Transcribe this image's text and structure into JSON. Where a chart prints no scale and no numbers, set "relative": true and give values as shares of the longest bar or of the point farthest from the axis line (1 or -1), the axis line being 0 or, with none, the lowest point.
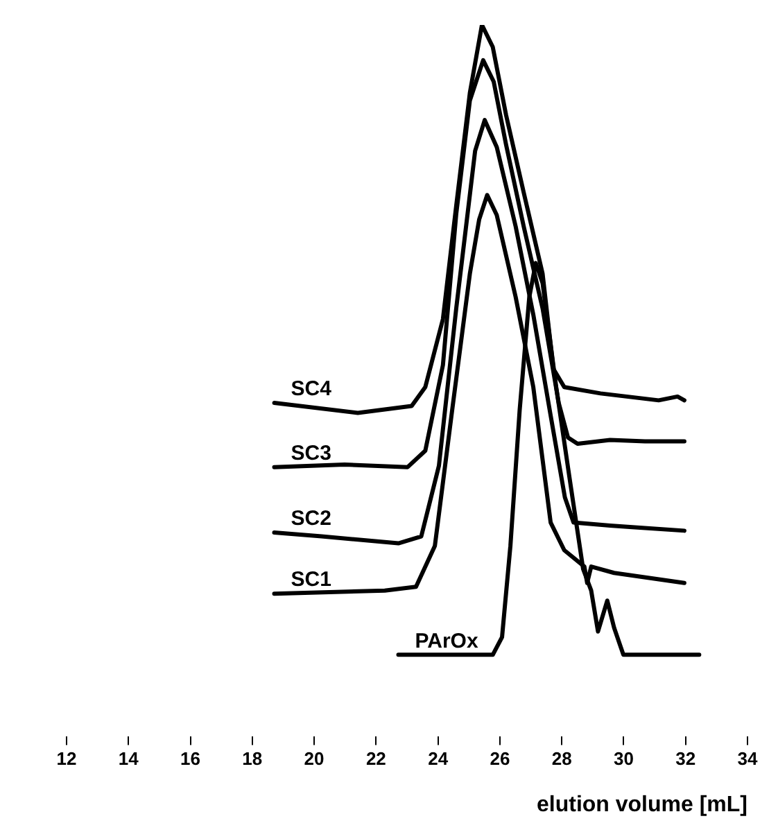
{
  "chart_data": {
    "type": "line",
    "relative": true,
    "xlabel": "elution volume [mL]",
    "xlim": [
      12,
      34
    ],
    "xticks": [
      12,
      14,
      16,
      18,
      20,
      22,
      24,
      26,
      28,
      30,
      32,
      34
    ],
    "series": [
      {
        "name": "SC4",
        "color": "#000000",
        "x": [
          18.71,
          21.41,
          23.15,
          23.59,
          24.16,
          24.59,
          25.03,
          25.42,
          25.77,
          26.2,
          26.77,
          27.38,
          27.73,
          28.08,
          29.25,
          31.13,
          31.74,
          31.96
        ],
        "values": [
          0.4,
          0.384,
          0.395,
          0.425,
          0.533,
          0.713,
          0.892,
          1,
          0.965,
          0.857,
          0.734,
          0.605,
          0.454,
          0.425,
          0.415,
          0.404,
          0.41,
          0.404
        ]
      },
      {
        "name": "SC3",
        "color": "#000000",
        "x": [
          18.71,
          20.98,
          23.02,
          23.59,
          24.16,
          24.59,
          25.03,
          25.46,
          25.8,
          26.2,
          26.77,
          27.38,
          27.9,
          28.2,
          28.51,
          29.56,
          30.69,
          31.96
        ],
        "values": [
          0.298,
          0.302,
          0.298,
          0.324,
          0.46,
          0.7,
          0.88,
          0.944,
          0.91,
          0.81,
          0.68,
          0.55,
          0.4,
          0.345,
          0.335,
          0.341,
          0.339,
          0.339
        ]
      },
      {
        "name": "SC2",
        "color": "#000000",
        "x": [
          18.71,
          20.24,
          22.72,
          23.46,
          24.03,
          24.59,
          25.2,
          25.51,
          25.9,
          26.51,
          27.08,
          27.64,
          28.1,
          28.38,
          29.56,
          31.96
        ],
        "values": [
          0.194,
          0.188,
          0.177,
          0.188,
          0.3,
          0.55,
          0.8,
          0.849,
          0.806,
          0.68,
          0.54,
          0.38,
          0.25,
          0.21,
          0.205,
          0.197
        ]
      },
      {
        "name": "SC1",
        "color": "#000000",
        "x": [
          18.71,
          22.28,
          23.29,
          23.9,
          24.46,
          25.03,
          25.33,
          25.59,
          25.9,
          26.51,
          27.08,
          27.64,
          28.08,
          28.73,
          28.82,
          28.95,
          29.69,
          31.96
        ],
        "values": [
          0.097,
          0.102,
          0.108,
          0.173,
          0.389,
          0.605,
          0.691,
          0.73,
          0.698,
          0.568,
          0.425,
          0.21,
          0.166,
          0.14,
          0.114,
          0.14,
          0.13,
          0.114
        ]
      },
      {
        "name": "PArOx",
        "color": "#000000",
        "x": [
          22.72,
          25.77,
          26.07,
          26.34,
          26.64,
          26.95,
          27.16,
          27.38,
          27.82,
          28.25,
          28.69,
          28.95,
          29.17,
          29.47,
          29.69,
          29.99,
          32.44
        ],
        "values": [
          0,
          0,
          0.028,
          0.173,
          0.389,
          0.568,
          0.622,
          0.59,
          0.425,
          0.281,
          0.136,
          0.102,
          0.037,
          0.086,
          0.043,
          0,
          0
        ]
      }
    ]
  }
}
